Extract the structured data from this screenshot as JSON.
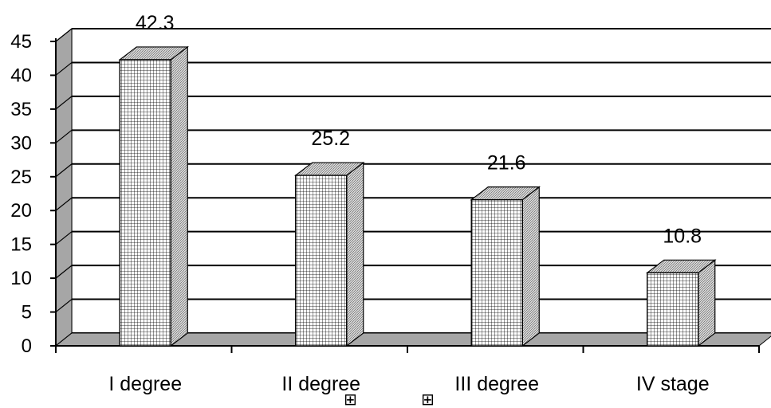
{
  "chart_data": {
    "type": "bar",
    "categories": [
      "I degree",
      "II degree",
      "III degree",
      "IV stage"
    ],
    "values": [
      42.3,
      25.2,
      21.6,
      10.8
    ],
    "data_labels": [
      "42.3",
      "25.2",
      "21.6",
      "10.8"
    ],
    "yticks": [
      "0",
      "5",
      "10",
      "15",
      "20",
      "25",
      "30",
      "35",
      "40",
      "45"
    ],
    "ylim": [
      0,
      45
    ],
    "grid": true,
    "title": "",
    "xlabel": "",
    "ylabel": "",
    "bar_fill": "grid-hatch",
    "legend_icons": [
      "grid-square-icon",
      "grid-square-icon"
    ]
  }
}
